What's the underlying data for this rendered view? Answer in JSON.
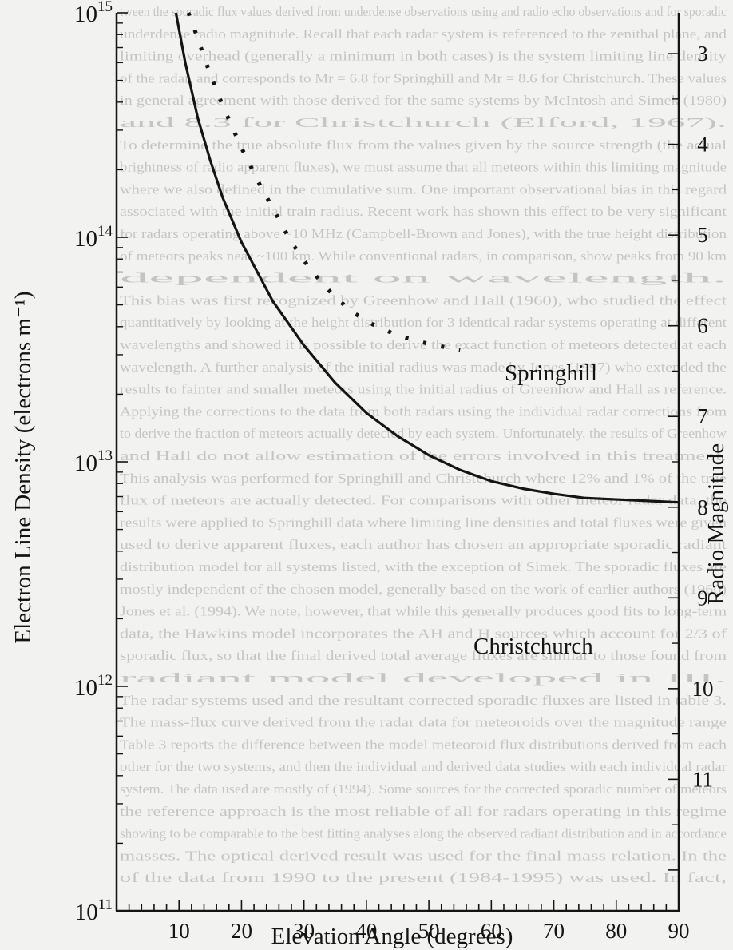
{
  "chart_data": {
    "type": "line",
    "title": "",
    "xlabel": "Elevation Angle (degrees)",
    "ylabel": "Electron Line Density (electrons m⁻¹)",
    "y2label": "Radio Magnitude",
    "xlim": [
      0,
      90
    ],
    "ylim": [
      100000000000.0,
      1000000000000000.0
    ],
    "yscale": "log",
    "y2lim": [
      2.55,
      12.45
    ],
    "x_ticks": [
      "10",
      "20",
      "30",
      "40",
      "50",
      "60",
      "70",
      "80",
      "90"
    ],
    "y_ticks": [
      {
        "base": "10",
        "exp": "11"
      },
      {
        "base": "10",
        "exp": "12"
      },
      {
        "base": "10",
        "exp": "13"
      },
      {
        "base": "10",
        "exp": "14"
      },
      {
        "base": "10",
        "exp": "15"
      }
    ],
    "y2_ticks": [
      "3",
      "4",
      "5",
      "6",
      "7",
      "8",
      "9",
      "10",
      "11"
    ],
    "grid": false,
    "series": [
      {
        "name": "Christchurch",
        "style": "solid",
        "x": [
          9.5,
          11,
          13,
          15,
          17,
          20,
          25,
          30,
          35,
          40,
          45,
          50,
          55,
          60,
          65,
          70,
          75,
          80,
          85,
          90
        ],
        "y": [
          1000000000000000.0,
          600000000000000.0,
          340000000000000.0,
          220000000000000.0,
          150000000000000.0,
          95000000000000.0,
          52000000000000.0,
          33000000000000.0,
          22500000000000.0,
          16500000000000.0,
          13000000000000.0,
          10700000000000.0,
          9200000000000.0,
          8200000000000.0,
          7600000000000.0,
          7200000000000.0,
          6900000000000.0,
          6800000000000.0,
          6700000000000.0,
          6600000000000.0
        ]
      },
      {
        "name": "Springhill",
        "style": "dotted",
        "x": [
          11.5,
          13,
          15,
          17,
          20,
          23,
          25,
          28,
          31,
          35,
          38,
          41,
          45,
          50,
          55
        ],
        "y": [
          1000000000000000.0,
          770000000000000.0,
          530000000000000.0,
          385000000000000.0,
          250000000000000.0,
          170000000000000.0,
          135000000000000.0,
          95000000000000.0,
          72000000000000.0,
          54000000000000.0,
          46000000000000.0,
          41000000000000.0,
          36500000000000.0,
          33500000000000.0,
          31500000000000.0
        ]
      }
    ]
  },
  "background_text": {
    "lines": [
      "tween the sporadic flux values derived from underdense observations using and radio echo observations and for sporadic",
      "underdense radio magnitude. Recall that each radar system is referenced to the zenithal plane, and",
      "limiting overhead (generally a minimum in both cases) is the system limiting line density",
      "of the radar, and corresponds to Mr = 6.8 for Springhill and Mr = 8.6 for Christchurch. These values",
      "in general agreement with those derived for the same systems by McIntosh and Simek (1980)",
      "and 8.3 for Christchurch (Elford, 1967).",
      "To determine the true absolute flux from the values given by the source strength (the actual",
      "brightness of radio apparent fluxes), we must assume that all meteors within this limiting magnitude",
      "where we also defined in the cumulative sum. One important observational bias in this regard",
      "associated with the initial train radius. Recent work has shown this effect to be very significant",
      "for radars operating above ~10 MHz (Campbell-Brown and Jones), with the true height distribution",
      "of meteors peaks near ~100 km. While conventional radars, in comparison, show peaks from 90 km",
      "dependent on wavelength.",
      "This bias was first recognized by Greenhow and Hall (1960), who studied the effect",
      "quantitatively by looking at the height distribution for 3 identical radar systems operating at different",
      "wavelengths and showed it is possible to derive the exact function of meteors detected at each",
      "wavelength. A further analysis of the initial radius was made by Jones (1997) who extended the",
      "results to fainter and smaller meteors using the initial radius of Greenhow and Hall as reference.",
      "Applying the corrections to the data from both radars using the individual radar corrections from",
      "to derive the fraction of meteors actually detected by each system. Unfortunately, the results of Greenhow",
      "and Hall do not allow estimation of the errors involved in this treatment.",
      "This analysis was performed for Springhill and Christchurch where 12% and 1% of the true",
      "flux of meteors are actually detected. For comparisons with other meteor radar data, the",
      "results were applied to Springhill data where limiting line densities and total fluxes were given",
      "used to derive apparent fluxes, each author has chosen an appropriate sporadic radiant",
      "distribution model for all systems listed, with the exception of Simek. The sporadic fluxes are",
      "mostly independent of the chosen model, generally based on the work of earlier authors (1960)",
      "Jones et al. (1994). We note, however, that while this generally produces good fits to long-term",
      "data, the Hawkins model incorporates the AH and H sources which account for 2/3 of",
      "sporadic flux, so that the final derived total average fluxes are similar to those found from",
      "radiant model developed in III.",
      "The radar systems used and the resultant corrected sporadic fluxes are listed in table 3.",
      "The mass-flux curve derived from the radar data for meteoroids over the magnitude range",
      "Table 3 reports the difference between the model meteoroid flux distributions derived from each",
      "other for the two systems, and then the individual and derived data studies with each individual radar",
      "system. The data used are mostly of (1994). Some sources for the corrected sporadic number of meteors",
      "the reference approach is the most reliable of all for radars operating in this regime",
      "showing to be comparable to the best fitting analyses along the observed radiant distribution and in accordance",
      "masses. The optical derived result was used for the final mass relation. In the",
      "of the data from 1990 to the present (1984-1995) was used. In fact,"
    ]
  }
}
